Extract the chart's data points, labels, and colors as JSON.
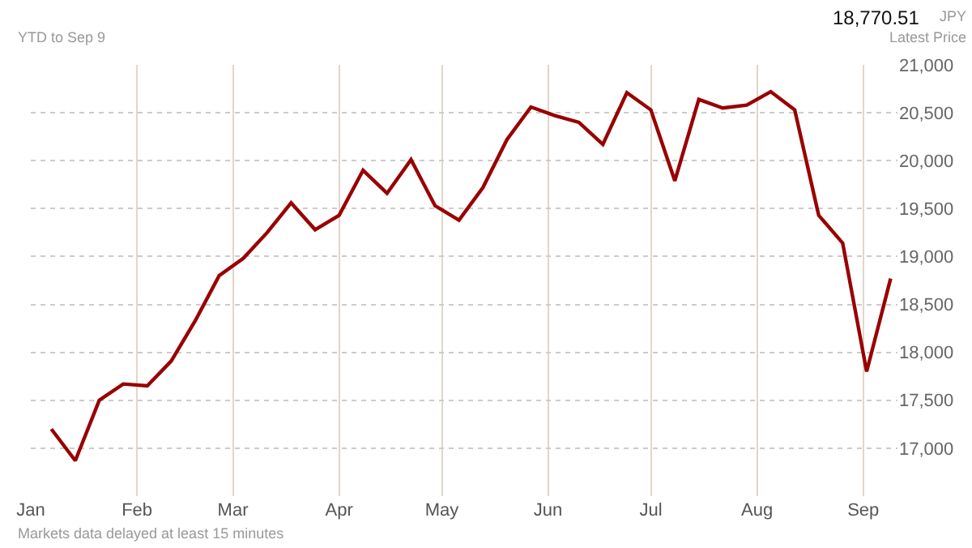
{
  "chart_data": {
    "type": "line",
    "subtitle": "YTD to Sep 9",
    "annotations": [
      "18,770.51",
      "JPY",
      "Latest Price",
      "Markets data delayed at least 15 minutes"
    ],
    "x": [
      "--01-07",
      "--01-14",
      "--01-21",
      "--01-28",
      "--02-04",
      "--02-11",
      "--02-18",
      "--02-25",
      "--03-04",
      "--03-11",
      "--03-18",
      "--03-25",
      "--04-01",
      "--04-08",
      "--04-15",
      "--04-22",
      "--04-29",
      "--05-06",
      "--05-13",
      "--05-20",
      "--05-27",
      "--06-03",
      "--06-10",
      "--06-17",
      "--06-24",
      "--07-01",
      "--07-08",
      "--07-15",
      "--07-22",
      "--07-29",
      "--08-05",
      "--08-12",
      "--08-19",
      "--08-26",
      "--09-02",
      "--09-09"
    ],
    "series": [
      {
        "color": "#990000",
        "values": [
          17200,
          16870,
          17500,
          17670,
          17650,
          17910,
          18330,
          18800,
          18980,
          19250,
          19560,
          19280,
          19430,
          19900,
          19660,
          20010,
          19530,
          19380,
          19720,
          20220,
          20560,
          20470,
          20400,
          20170,
          20710,
          20530,
          19790,
          20640,
          20550,
          20580,
          20720,
          20530,
          19430,
          19140,
          17800,
          18770
        ]
      }
    ],
    "xlim": [
      "--01-01",
      "--09-11"
    ],
    "xticks": [
      {
        "value": "--01-01",
        "label": "Jan"
      },
      {
        "value": "--02-01",
        "label": "Feb"
      },
      {
        "value": "--03-01",
        "label": "Mar"
      },
      {
        "value": "--04-01",
        "label": "Apr"
      },
      {
        "value": "--05-01",
        "label": "May"
      },
      {
        "value": "--06-01",
        "label": "Jun"
      },
      {
        "value": "--07-01",
        "label": "Jul"
      },
      {
        "value": "--08-01",
        "label": "Aug"
      },
      {
        "value": "--09-01",
        "label": "Sep"
      }
    ],
    "ylim": [
      16500,
      21000
    ],
    "yticks": [
      {
        "value": 17000,
        "label": "17,000"
      },
      {
        "value": 17500,
        "label": "17,500"
      },
      {
        "value": 18000,
        "label": "18,000"
      },
      {
        "value": 18500,
        "label": "18,500"
      },
      {
        "value": 19000,
        "label": "19,000"
      },
      {
        "value": 19500,
        "label": "19,500"
      },
      {
        "value": 20000,
        "label": "20,000"
      },
      {
        "value": 20500,
        "label": "20,500"
      },
      {
        "value": 21000,
        "label": "21,000"
      }
    ],
    "grid": true,
    "marker": "none",
    "line_style": "solid"
  }
}
